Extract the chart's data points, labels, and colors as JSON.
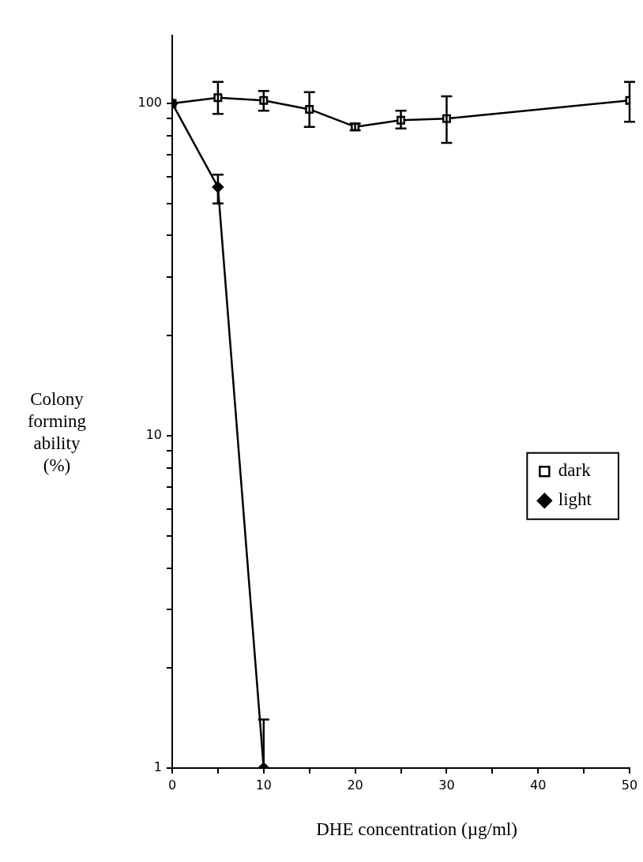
{
  "chart_data": {
    "type": "line",
    "xlabel": "DHE concentration (µg/ml)",
    "ylabel": "Colony forming ability (%)",
    "log": "y",
    "grid": false,
    "legend": "right",
    "line_style": "solid",
    "xlim": [
      0,
      50
    ],
    "xticks": [
      0,
      {
        "value": 5,
        "label": null
      },
      10,
      {
        "value": 15,
        "label": null
      },
      20,
      {
        "value": 25,
        "label": null
      },
      30,
      {
        "value": 35,
        "label": null
      },
      40,
      {
        "value": 45,
        "label": null
      },
      50
    ],
    "ylim": [
      1,
      160
    ],
    "yticks": [
      1,
      {
        "value": 2,
        "label": null
      },
      {
        "value": 3,
        "label": null
      },
      {
        "value": 4,
        "label": null
      },
      {
        "value": 5,
        "label": null
      },
      {
        "value": 6,
        "label": null
      },
      {
        "value": 7,
        "label": null
      },
      {
        "value": 8,
        "label": null
      },
      {
        "value": 9,
        "label": null
      },
      10,
      {
        "value": 20,
        "label": null
      },
      {
        "value": 30,
        "label": null
      },
      {
        "value": 40,
        "label": null
      },
      {
        "value": 50,
        "label": null
      },
      {
        "value": 60,
        "label": null
      },
      {
        "value": 70,
        "label": null
      },
      {
        "value": 80,
        "label": null
      },
      {
        "value": 90,
        "label": null
      },
      100
    ],
    "series": [
      {
        "name": "dark",
        "color": "#000000",
        "marker": "square",
        "x": [
          0,
          5,
          10,
          15,
          20,
          25,
          30,
          50
        ],
        "values": [
          100,
          104,
          102,
          96,
          85,
          89,
          90,
          102
        ],
        "errors": [
          null,
          [
            93,
            116
          ],
          [
            95,
            109
          ],
          [
            85,
            108
          ],
          [
            83,
            87
          ],
          [
            84,
            95
          ],
          [
            76,
            105
          ],
          [
            88,
            116
          ]
        ]
      },
      {
        "name": "light",
        "color": "#000000",
        "marker": "diamond",
        "x": [
          0,
          5,
          10
        ],
        "values": [
          100,
          56,
          1
        ],
        "errors": [
          null,
          [
            50,
            61
          ],
          [
            1,
            1.4
          ]
        ]
      }
    ]
  }
}
